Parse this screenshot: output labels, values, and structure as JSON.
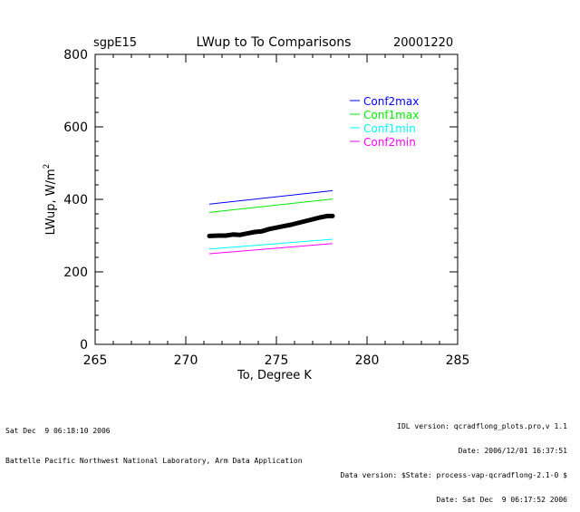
{
  "header": {
    "site": "sgpE15",
    "title": "LWup to To Comparisons",
    "date": "20001220"
  },
  "footer": {
    "left_line1": "Sat Dec  9 06:18:10 2006",
    "left_line2": "Battelle Pacific Northwest National Laboratory, Arm Data Application",
    "right_line1": "IDL version: qcradflong_plots.pro,v 1.1",
    "right_line2": "Date: 2006/12/01 16:37:51",
    "right_line3": "Data version: $State: process-vap-qcradflong-2.1-0 $",
    "right_line4": "Date: Sat Dec  9 06:17:52 2006"
  },
  "chart_data": {
    "type": "scatter",
    "title": "LWup to To Comparisons",
    "xlabel": "To, Degree K",
    "ylabel": "LWup, W/m",
    "ylabel_superscript": "2",
    "xlim": [
      265,
      285
    ],
    "ylim": [
      0,
      800
    ],
    "x_ticks": [
      265,
      270,
      275,
      280,
      285
    ],
    "y_ticks": [
      0,
      200,
      400,
      600,
      800
    ],
    "grid": false,
    "legend_position": "top-right",
    "series": [
      {
        "name": "Conf2max",
        "color": "#0000ff",
        "kind": "line",
        "x": [
          271.3,
          278.1
        ],
        "y": [
          387,
          424
        ]
      },
      {
        "name": "Conf1max",
        "color": "#00ee00",
        "kind": "line",
        "x": [
          271.3,
          278.1
        ],
        "y": [
          364,
          401
        ]
      },
      {
        "name": "Conf1min",
        "color": "#00ffff",
        "kind": "line",
        "x": [
          271.3,
          278.1
        ],
        "y": [
          263,
          290
        ]
      },
      {
        "name": "Conf2min",
        "color": "#ff00ff",
        "kind": "line",
        "x": [
          271.3,
          278.1
        ],
        "y": [
          250,
          278
        ]
      }
    ],
    "observations": {
      "color": "#000000",
      "x": [
        271.3,
        271.8,
        272.2,
        272.6,
        273.0,
        273.4,
        273.8,
        274.2,
        274.6,
        275.0,
        275.4,
        275.8,
        276.2,
        276.6,
        277.0,
        277.4,
        277.8,
        278.1
      ],
      "y": [
        299,
        300,
        300,
        303,
        302,
        306,
        310,
        312,
        318,
        322,
        326,
        330,
        335,
        340,
        345,
        350,
        354,
        354
      ]
    }
  }
}
